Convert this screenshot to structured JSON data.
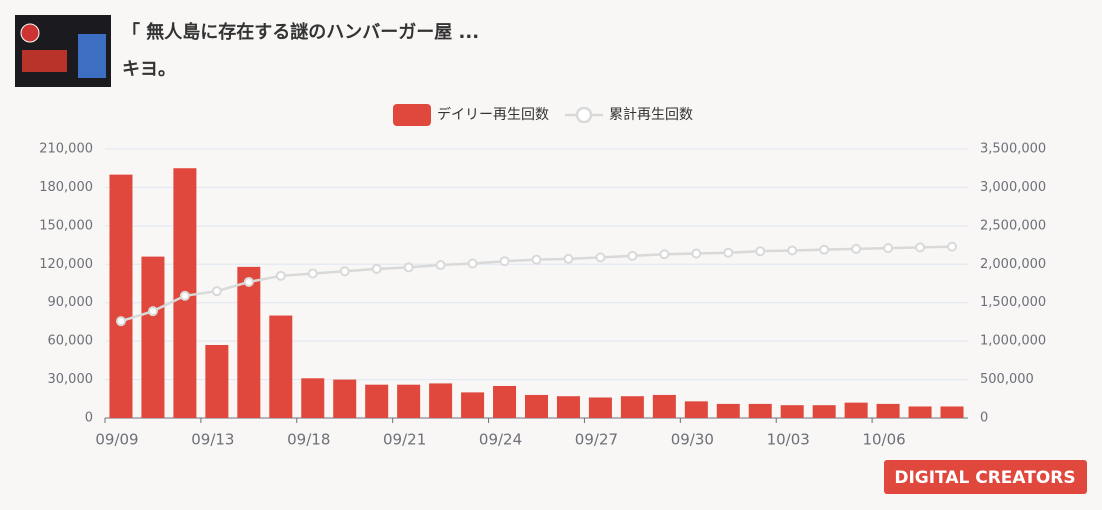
{
  "header": {
    "title": "「 無人島に存在する謎のハンバーガー屋 ...",
    "channel": "キヨ。"
  },
  "logo": "DIGITAL CREATORS",
  "chart_data": {
    "type": "bar",
    "categories": [
      "09/09",
      null,
      null,
      "09/13",
      null,
      null,
      "09/18",
      null,
      null,
      "09/21",
      null,
      null,
      "09/24",
      null,
      null,
      "09/27",
      null,
      null,
      "09/30",
      null,
      null,
      "10/03",
      null,
      null,
      "10/06",
      null,
      null
    ],
    "series": [
      {
        "name": "デイリー再生回数",
        "type": "bar",
        "color": "#e0483e",
        "values": [
          190000,
          126000,
          195000,
          57000,
          118000,
          80000,
          31000,
          30000,
          26000,
          26000,
          27000,
          20000,
          25000,
          18000,
          17000,
          16000,
          17000,
          18000,
          13000,
          11000,
          11000,
          10000,
          10000,
          12000,
          11000,
          9000,
          9000
        ]
      },
      {
        "name": "累計再生回数",
        "type": "line",
        "axis": "y2",
        "color": "#d9d9d9",
        "values": [
          1260000,
          1390000,
          1590000,
          1650000,
          1770000,
          1850000,
          1880000,
          1910000,
          1940000,
          1960000,
          1990000,
          2010000,
          2040000,
          2060000,
          2070000,
          2090000,
          2110000,
          2130000,
          2140000,
          2150000,
          2170000,
          2180000,
          2190000,
          2200000,
          2210000,
          2220000,
          2230000
        ]
      }
    ],
    "ylim": [
      0,
      210000
    ],
    "yticks": [
      0,
      {
        "value": 30000,
        "label": "30,000"
      },
      {
        "value": 60000,
        "label": "60,000"
      },
      {
        "value": 90000,
        "label": "90,000"
      },
      {
        "value": 120000,
        "label": "120,000"
      },
      {
        "value": 150000,
        "label": "150,000"
      },
      {
        "value": 180000,
        "label": "180,000"
      },
      {
        "value": 210000,
        "label": "210,000"
      }
    ],
    "y2lim": [
      0,
      3500000
    ],
    "y2ticks": [
      0,
      {
        "value": 500000,
        "label": "500,000"
      },
      {
        "value": 1000000,
        "label": "1,000,000"
      },
      {
        "value": 1500000,
        "label": "1,500,000"
      },
      {
        "value": 2000000,
        "label": "2,000,000"
      },
      {
        "value": 2500000,
        "label": "2,500,000"
      },
      {
        "value": 3000000,
        "label": "3,000,000"
      },
      {
        "value": 3500000,
        "label": "3,500,000"
      }
    ],
    "grid": true,
    "legend": "top"
  }
}
